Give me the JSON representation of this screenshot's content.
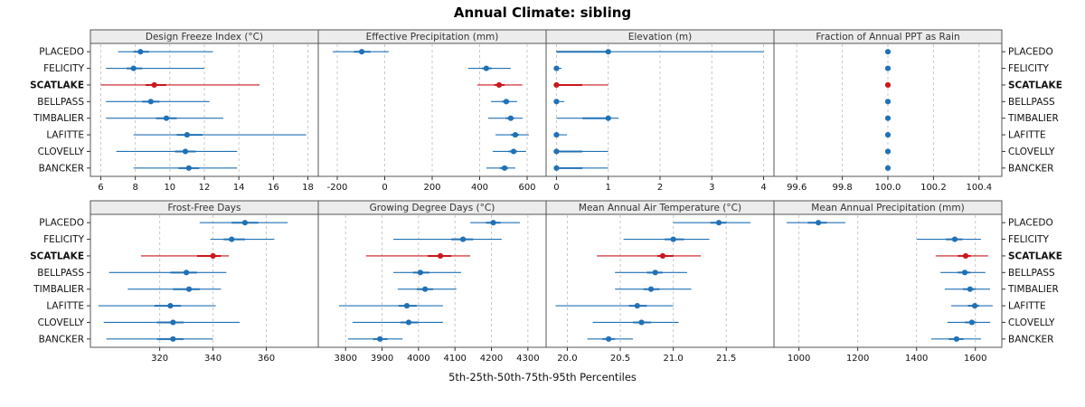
{
  "title": "Annual Climate: sibling",
  "caption": "5th-25th-50th-75th-95th Percentiles",
  "colors": {
    "series": "#2171b5",
    "highlight": "#cb181d",
    "strip_bg": "#ececec",
    "border": "#555555",
    "grid": "#c8c8c8",
    "tick": "#333333",
    "label": "#111111"
  },
  "chart_data": {
    "type": "trellis-dotplot",
    "percentiles": [
      5,
      25,
      50,
      75,
      95
    ],
    "sites": [
      "PLACEDO",
      "FELICITY",
      "SCATLAKE",
      "BELLPASS",
      "TIMBALIER",
      "LAFITTE",
      "CLOVELLY",
      "BANCKER"
    ],
    "highlight_site": "SCATLAKE",
    "panels": [
      {
        "title": "Design Freeze Index (°C)",
        "xlim": [
          5.4,
          18.6
        ],
        "ticks": [
          6,
          8,
          10,
          12,
          14,
          16,
          18
        ],
        "tick_labels": [
          "6",
          "8",
          "10",
          "12",
          "14",
          "16",
          "18"
        ],
        "values": {
          "PLACEDO": [
            7.0,
            7.9,
            8.3,
            8.8,
            12.5
          ],
          "FELICITY": [
            6.3,
            7.5,
            7.9,
            8.4,
            12.0
          ],
          "SCATLAKE": [
            6.0,
            8.6,
            9.1,
            9.8,
            15.2
          ],
          "BELLPASS": [
            6.3,
            8.4,
            8.9,
            9.4,
            12.3
          ],
          "TIMBALIER": [
            6.3,
            9.2,
            9.8,
            10.4,
            13.1
          ],
          "LAFITTE": [
            7.9,
            10.4,
            11.0,
            11.9,
            17.9
          ],
          "CLOVELLY": [
            6.9,
            10.3,
            10.9,
            11.5,
            13.9
          ],
          "BANCKER": [
            7.9,
            10.5,
            11.1,
            11.7,
            13.9
          ]
        }
      },
      {
        "title": "Effective Precipitation (mm)",
        "xlim": [
          -280,
          680
        ],
        "ticks": [
          -200,
          0,
          200,
          400,
          600
        ],
        "tick_labels": [
          "-200",
          "0",
          "200",
          "400",
          "600"
        ],
        "values": {
          "PLACEDO": [
            -219,
            -130,
            -97,
            -60,
            17
          ],
          "FELICITY": [
            352,
            410,
            428,
            450,
            531
          ],
          "SCATLAKE": [
            390,
            462,
            482,
            505,
            580
          ],
          "BELLPASS": [
            448,
            495,
            512,
            525,
            558
          ],
          "TIMBALIER": [
            436,
            510,
            531,
            545,
            581
          ],
          "LAFITTE": [
            467,
            532,
            550,
            565,
            607
          ],
          "CLOVELLY": [
            455,
            522,
            543,
            558,
            596
          ],
          "BANCKER": [
            428,
            485,
            505,
            520,
            550
          ]
        }
      },
      {
        "title": "Elevation (m)",
        "xlim": [
          -0.2,
          4.2
        ],
        "ticks": [
          0,
          1,
          2,
          3,
          4
        ],
        "tick_labels": [
          "0",
          "1",
          "2",
          "3",
          "4"
        ],
        "values": {
          "PLACEDO": [
            0,
            0,
            1,
            1,
            4
          ],
          "FELICITY": [
            0,
            0,
            0,
            0,
            0.1
          ],
          "SCATLAKE": [
            0,
            0,
            0,
            0.5,
            1
          ],
          "BELLPASS": [
            0,
            0,
            0,
            0,
            0.15
          ],
          "TIMBALIER": [
            0,
            0.5,
            1,
            1,
            1.2
          ],
          "LAFITTE": [
            0,
            0,
            0,
            0,
            0.2
          ],
          "CLOVELLY": [
            0,
            0,
            0,
            0.5,
            1
          ],
          "BANCKER": [
            0,
            0,
            0,
            0.5,
            1
          ]
        }
      },
      {
        "title": "Fraction of Annual PPT as Rain",
        "xlim": [
          99.5,
          100.5
        ],
        "ticks": [
          99.6,
          99.8,
          100.0,
          100.2,
          100.4
        ],
        "tick_labels": [
          "99.6",
          "99.8",
          "100.0",
          "100.2",
          "100.4"
        ],
        "values": {
          "PLACEDO": [
            100,
            100,
            100,
            100,
            100
          ],
          "FELICITY": [
            100,
            100,
            100,
            100,
            100
          ],
          "SCATLAKE": [
            100,
            100,
            100,
            100,
            100
          ],
          "BELLPASS": [
            100,
            100,
            100,
            100,
            100
          ],
          "TIMBALIER": [
            100,
            100,
            100,
            100,
            100
          ],
          "LAFITTE": [
            100,
            100,
            100,
            100,
            100
          ],
          "CLOVELLY": [
            100,
            100,
            100,
            100,
            100
          ],
          "BANCKER": [
            100,
            100,
            100,
            100,
            100
          ]
        }
      },
      {
        "title": "Frost-Free Days",
        "xlim": [
          294,
          379.5
        ],
        "ticks": [
          320,
          340,
          360
        ],
        "tick_labels": [
          "320",
          "340",
          "360"
        ],
        "values": {
          "PLACEDO": [
            335,
            347,
            352,
            357,
            368
          ],
          "FELICITY": [
            339,
            344,
            347,
            352,
            363
          ],
          "SCATLAKE": [
            313,
            334,
            340,
            343,
            346
          ],
          "BELLPASS": [
            301,
            324,
            330,
            334,
            345
          ],
          "TIMBALIER": [
            308,
            325,
            331,
            335,
            343
          ],
          "LAFITTE": [
            297,
            318,
            324,
            328,
            341
          ],
          "CLOVELLY": [
            299,
            319,
            325,
            329,
            350
          ],
          "BANCKER": [
            300,
            319,
            325,
            329,
            340
          ]
        }
      },
      {
        "title": "Growing Degree Days (°C)",
        "xlim": [
          3725,
          4350
        ],
        "ticks": [
          3800,
          3900,
          4000,
          4100,
          4200,
          4300
        ],
        "tick_labels": [
          "3800",
          "3900",
          "4000",
          "4100",
          "4200",
          "4300"
        ],
        "values": {
          "PLACEDO": [
            4142,
            4185,
            4205,
            4225,
            4278
          ],
          "FELICITY": [
            3931,
            4090,
            4122,
            4150,
            4228
          ],
          "SCATLAKE": [
            3856,
            4025,
            4060,
            4090,
            4142
          ],
          "BELLPASS": [
            3931,
            3985,
            4005,
            4030,
            4117
          ],
          "TIMBALIER": [
            3943,
            3995,
            4018,
            4040,
            4104
          ],
          "LAFITTE": [
            3782,
            3945,
            3968,
            3995,
            4067
          ],
          "CLOVELLY": [
            3819,
            3950,
            3973,
            4000,
            4067
          ],
          "BANCKER": [
            3807,
            3875,
            3894,
            3915,
            3956
          ]
        }
      },
      {
        "title": "Mean Annual Air Temperature (°C)",
        "xlim": [
          19.8,
          21.95
        ],
        "ticks": [
          20.0,
          20.5,
          21.0,
          21.5
        ],
        "tick_labels": [
          "20.0",
          "20.5",
          "21.0",
          "21.5"
        ],
        "values": {
          "PLACEDO": [
            21.0,
            21.35,
            21.43,
            21.5,
            21.73
          ],
          "FELICITY": [
            20.53,
            20.92,
            21.0,
            21.1,
            21.34
          ],
          "SCATLAKE": [
            20.28,
            20.85,
            20.9,
            21.0,
            21.26
          ],
          "BELLPASS": [
            20.45,
            20.75,
            20.83,
            20.9,
            21.13
          ],
          "TIMBALIER": [
            20.45,
            20.72,
            20.79,
            20.87,
            21.17
          ],
          "LAFITTE": [
            19.89,
            20.58,
            20.66,
            20.75,
            21.0
          ],
          "CLOVELLY": [
            20.24,
            20.62,
            20.7,
            20.79,
            21.05
          ],
          "BANCKER": [
            20.19,
            20.33,
            20.39,
            20.45,
            20.62
          ]
        }
      },
      {
        "title": "Mean Annual Precipitation (mm)",
        "xlim": [
          915,
          1690
        ],
        "ticks": [
          1000,
          1200,
          1400,
          1600
        ],
        "tick_labels": [
          "1000",
          "1200",
          "1400",
          "1600"
        ],
        "values": {
          "PLACEDO": [
            958,
            1030,
            1066,
            1095,
            1158
          ],
          "FELICITY": [
            1401,
            1500,
            1530,
            1556,
            1619
          ],
          "SCATLAKE": [
            1465,
            1540,
            1567,
            1585,
            1644
          ],
          "BELLPASS": [
            1481,
            1540,
            1564,
            1583,
            1634
          ],
          "TIMBALIER": [
            1496,
            1558,
            1582,
            1600,
            1650
          ],
          "LAFITTE": [
            1518,
            1575,
            1598,
            1613,
            1659
          ],
          "CLOVELLY": [
            1505,
            1565,
            1588,
            1603,
            1650
          ],
          "BANCKER": [
            1450,
            1510,
            1536,
            1560,
            1619
          ]
        }
      }
    ]
  }
}
